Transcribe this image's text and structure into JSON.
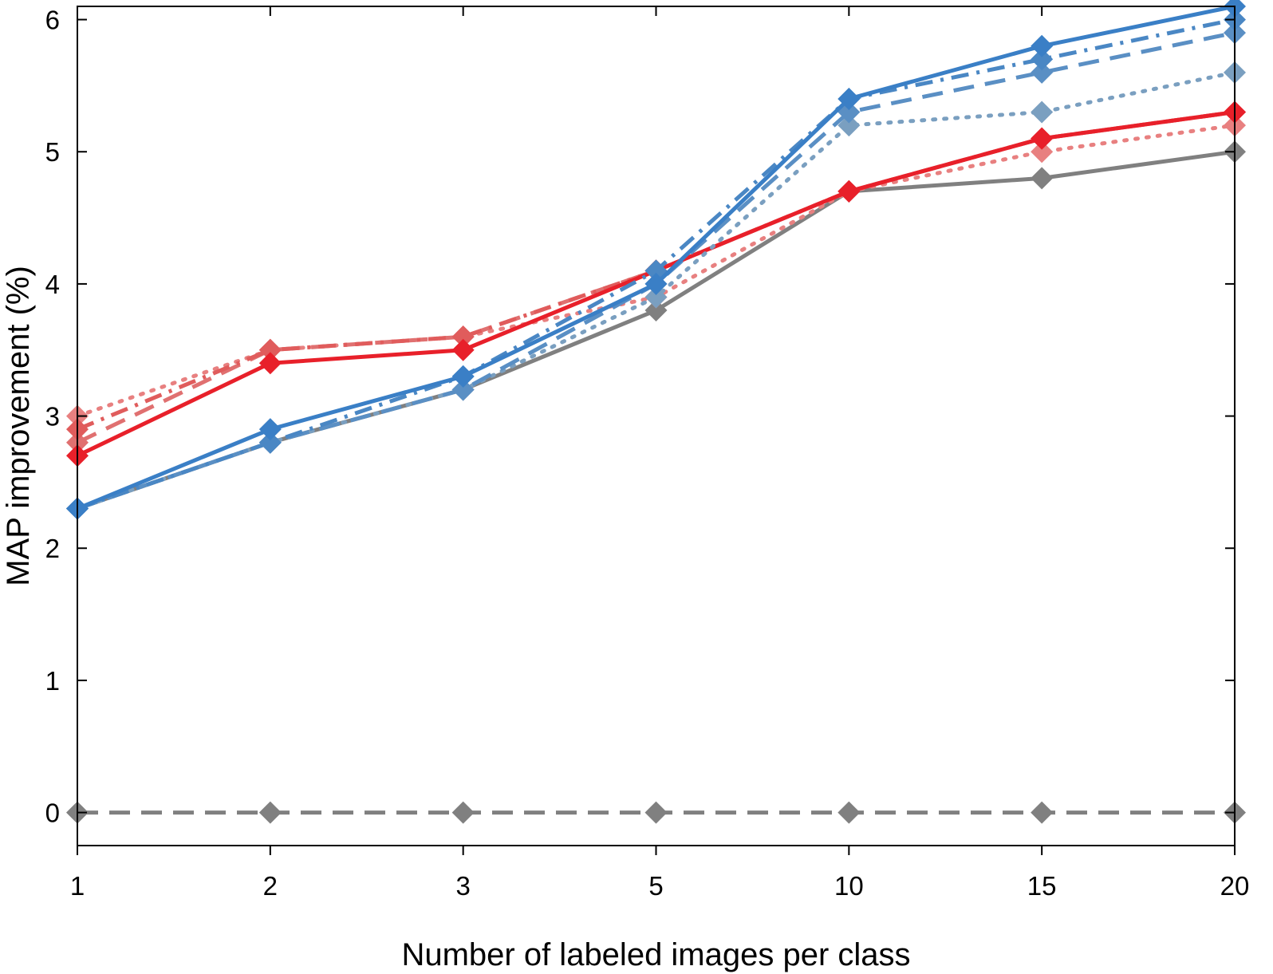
{
  "chart_data": {
    "type": "line",
    "title": "",
    "xlabel": "Number of labeled images per class",
    "ylabel": "MAP improvement (%)",
    "categories": [
      "1",
      "2",
      "3",
      "5",
      "10",
      "15",
      "20"
    ],
    "yticks": [
      "0",
      "1",
      "2",
      "3",
      "4",
      "5",
      "6"
    ],
    "ylim": [
      -0.25,
      6.1
    ],
    "grid": false,
    "legend": "none",
    "series": [
      {
        "name": "baseline",
        "color": "#808080",
        "dash": "dashed",
        "opacity": 1,
        "values": [
          0,
          0,
          0,
          0,
          0,
          0,
          0
        ]
      },
      {
        "name": "gray solid",
        "color": "#808080",
        "dash": "solid",
        "opacity": 1,
        "values": [
          2.3,
          2.8,
          3.2,
          3.8,
          4.7,
          4.8,
          5.0
        ]
      },
      {
        "name": "red dotted",
        "color": "#e88080",
        "dash": "dotted",
        "opacity": 1,
        "values": [
          3.0,
          3.5,
          3.6,
          3.9,
          4.7,
          5.0,
          5.2
        ]
      },
      {
        "name": "red dashed",
        "color": "#e07070",
        "dash": "dashed",
        "opacity": 1,
        "values": [
          2.8,
          3.5,
          3.6,
          4.1,
          4.7,
          5.1,
          5.3
        ]
      },
      {
        "name": "red dash-dot",
        "color": "#e05c5c",
        "dash": "dashdot",
        "opacity": 1,
        "values": [
          2.9,
          3.5,
          3.6,
          4.1,
          4.7,
          5.1,
          5.3
        ]
      },
      {
        "name": "red solid",
        "color": "#e8202a",
        "dash": "solid",
        "opacity": 1,
        "values": [
          2.7,
          3.4,
          3.5,
          4.1,
          4.7,
          5.1,
          5.3
        ]
      },
      {
        "name": "blue dotted",
        "color": "#7a9fc0",
        "dash": "dotted",
        "opacity": 1,
        "values": [
          2.3,
          2.8,
          3.2,
          3.9,
          5.2,
          5.3,
          5.6
        ]
      },
      {
        "name": "blue dashed",
        "color": "#5a8fc4",
        "dash": "dashed",
        "opacity": 1,
        "values": [
          2.3,
          2.8,
          3.2,
          4.0,
          5.3,
          5.6,
          5.9
        ]
      },
      {
        "name": "blue dash-dot",
        "color": "#4a87c4",
        "dash": "dashdot",
        "opacity": 1,
        "values": [
          2.3,
          2.8,
          3.3,
          4.1,
          5.4,
          5.7,
          6.0
        ]
      },
      {
        "name": "blue solid",
        "color": "#3a7fc6",
        "dash": "solid",
        "opacity": 1,
        "values": [
          2.3,
          2.9,
          3.3,
          4.0,
          5.4,
          5.8,
          6.1
        ]
      }
    ]
  }
}
